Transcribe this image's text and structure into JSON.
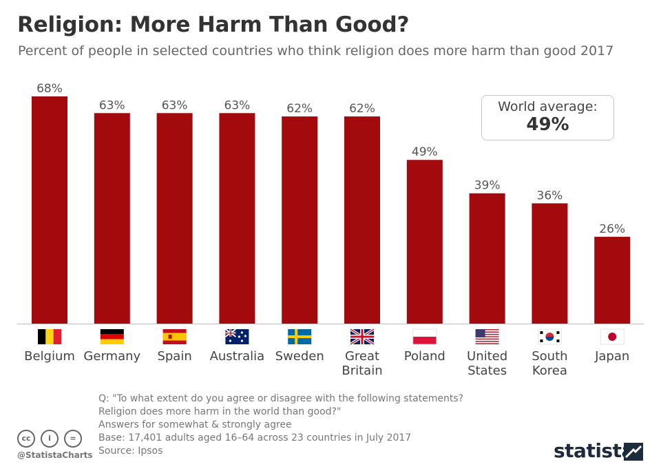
{
  "title": "Religion: More Harm Than Good?",
  "subtitle": "Percent of people in selected countries who think religion does more harm than good 2017",
  "world_average": {
    "label": "World average:",
    "value": "49%"
  },
  "notes": [
    "Q: \"To what extent do you agree or disagree with the following statements?",
    "Religion does more harm in the world than good?\"",
    "Answers for somewhat & strongly agree",
    "Base: 17,401 adults aged 16–64 across 23 countries in July 2017",
    "Source: Ipsos"
  ],
  "handle": "@StatistaCharts",
  "logo": "statista",
  "colors": {
    "bar": "#a30a0e",
    "axis": "#cccccc"
  },
  "chart_data": {
    "type": "bar",
    "title": "Religion: More Harm Than Good?",
    "subtitle": "Percent of people in selected countries who think religion does more harm than good 2017",
    "categories": [
      [
        "Belgium"
      ],
      [
        "Germany"
      ],
      [
        "Spain"
      ],
      [
        "Australia"
      ],
      [
        "Sweden"
      ],
      [
        "Great",
        "Britain"
      ],
      [
        "Poland"
      ],
      [
        "United",
        "States"
      ],
      [
        "South",
        "Korea"
      ],
      [
        "Japan"
      ]
    ],
    "flags": [
      "belgium-flag-icon",
      "germany-flag-icon",
      "spain-flag-icon",
      "australia-flag-icon",
      "sweden-flag-icon",
      "uk-flag-icon",
      "poland-flag-icon",
      "usa-flag-icon",
      "south-korea-flag-icon",
      "japan-flag-icon"
    ],
    "values": [
      68,
      63,
      63,
      63,
      62,
      62,
      49,
      39,
      36,
      26
    ],
    "value_labels": [
      "68%",
      "63%",
      "63%",
      "63%",
      "62%",
      "62%",
      "49%",
      "39%",
      "36%",
      "26%"
    ],
    "unit": "%",
    "ylim": [
      0,
      68
    ],
    "grid": false,
    "legend": "none"
  }
}
